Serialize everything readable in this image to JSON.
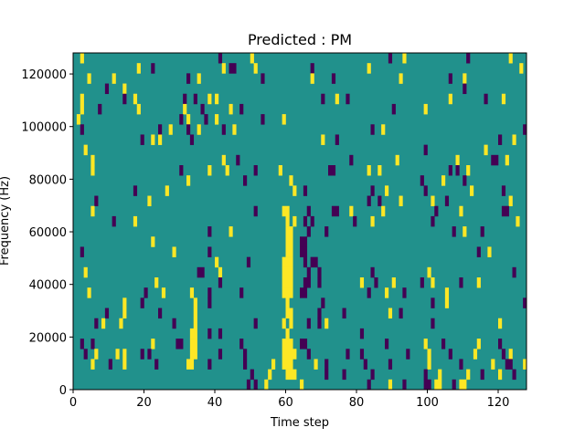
{
  "chart_data": {
    "type": "heatmap",
    "title": "Predicted : PM",
    "xlabel": "Time step",
    "ylabel": "Frequency (Hz)",
    "xlim": [
      0,
      128
    ],
    "ylim": [
      0,
      128000
    ],
    "xticks": [
      0,
      20,
      40,
      60,
      80,
      100,
      120
    ],
    "xtick_labels": [
      "0",
      "20",
      "40",
      "60",
      "80",
      "100",
      "120"
    ],
    "yticks": [
      0,
      20000,
      40000,
      60000,
      80000,
      100000,
      120000
    ],
    "ytick_labels": [
      "0",
      "20000",
      "40000",
      "60000",
      "80000",
      "100000",
      "120000"
    ],
    "n_cols": 128,
    "n_rows": 33,
    "row_order": "top-to-bottom (highest frequency first)",
    "background_value": 0.5,
    "colormap": {
      "0": "#440154",
      "0.5": "#21918c",
      "1": "#fde725"
    },
    "cells_format": "per row: [start_col, run_length, value]",
    "rows": [
      [
        [
          2,
          1,
          1
        ],
        [
          41,
          1,
          0
        ],
        [
          50,
          1,
          1
        ],
        [
          89,
          1,
          0
        ],
        [
          93,
          1,
          1
        ],
        [
          111,
          1,
          0
        ],
        [
          123,
          1,
          1
        ]
      ],
      [
        [
          18,
          1,
          1
        ],
        [
          22,
          1,
          0
        ],
        [
          42,
          1,
          1
        ],
        [
          44,
          2,
          0
        ],
        [
          51,
          1,
          1
        ],
        [
          67,
          1,
          0
        ],
        [
          83,
          1,
          1
        ],
        [
          126,
          1,
          1
        ]
      ],
      [
        [
          4,
          1,
          1
        ],
        [
          11,
          1,
          1
        ],
        [
          32,
          1,
          0
        ],
        [
          35,
          1,
          1
        ],
        [
          53,
          1,
          0
        ],
        [
          67,
          1,
          1
        ],
        [
          73,
          1,
          0
        ],
        [
          92,
          1,
          1
        ],
        [
          106,
          1,
          0
        ],
        [
          110,
          1,
          1
        ]
      ],
      [
        [
          9,
          1,
          0
        ],
        [
          14,
          1,
          1
        ],
        [
          110,
          1,
          0
        ]
      ],
      [
        [
          2,
          1,
          1
        ],
        [
          14,
          1,
          0
        ],
        [
          17,
          1,
          1
        ],
        [
          31,
          1,
          0
        ],
        [
          34,
          1,
          0
        ],
        [
          38,
          1,
          1
        ],
        [
          40,
          1,
          1
        ],
        [
          70,
          1,
          0
        ],
        [
          74,
          1,
          1
        ],
        [
          77,
          1,
          0
        ],
        [
          106,
          1,
          1
        ],
        [
          116,
          1,
          0
        ],
        [
          121,
          1,
          1
        ]
      ],
      [
        [
          2,
          1,
          1
        ],
        [
          7,
          1,
          0
        ],
        [
          18,
          1,
          1
        ],
        [
          31,
          1,
          1
        ],
        [
          36,
          1,
          0
        ],
        [
          44,
          1,
          1
        ],
        [
          47,
          1,
          0
        ],
        [
          90,
          1,
          0
        ],
        [
          99,
          1,
          1
        ]
      ],
      [
        [
          1,
          1,
          1
        ],
        [
          30,
          1,
          0
        ],
        [
          32,
          1,
          1
        ],
        [
          37,
          1,
          0
        ],
        [
          40,
          1,
          1
        ],
        [
          53,
          1,
          0
        ],
        [
          59,
          1,
          1
        ]
      ],
      [
        [
          2,
          1,
          0
        ],
        [
          24,
          1,
          0
        ],
        [
          27,
          1,
          1
        ],
        [
          32,
          1,
          0
        ],
        [
          35,
          1,
          1
        ],
        [
          42,
          1,
          0
        ],
        [
          45,
          1,
          1
        ],
        [
          84,
          1,
          0
        ],
        [
          87,
          1,
          1
        ],
        [
          127,
          1,
          0
        ]
      ],
      [
        [
          19,
          1,
          0
        ],
        [
          22,
          1,
          1
        ],
        [
          24,
          1,
          1
        ],
        [
          33,
          1,
          0
        ],
        [
          70,
          1,
          1
        ],
        [
          74,
          1,
          0
        ],
        [
          120,
          1,
          0
        ],
        [
          124,
          1,
          1
        ]
      ],
      [
        [
          3,
          1,
          1
        ],
        [
          99,
          1,
          0
        ],
        [
          116,
          1,
          1
        ]
      ],
      [
        [
          5,
          1,
          1
        ],
        [
          42,
          1,
          1
        ],
        [
          46,
          1,
          0
        ],
        [
          78,
          1,
          0
        ],
        [
          91,
          1,
          1
        ],
        [
          108,
          1,
          1
        ],
        [
          118,
          2,
          0
        ],
        [
          122,
          1,
          1
        ]
      ],
      [
        [
          5,
          1,
          1
        ],
        [
          30,
          1,
          0
        ],
        [
          38,
          1,
          1
        ],
        [
          43,
          1,
          1
        ],
        [
          51,
          1,
          0
        ],
        [
          58,
          1,
          1
        ],
        [
          72,
          2,
          0
        ],
        [
          83,
          1,
          1
        ],
        [
          86,
          1,
          1
        ],
        [
          106,
          1,
          0
        ],
        [
          108,
          1,
          0
        ],
        [
          111,
          1,
          1
        ]
      ],
      [
        [
          32,
          1,
          1
        ],
        [
          48,
          1,
          0
        ],
        [
          61,
          1,
          1
        ],
        [
          98,
          1,
          0
        ],
        [
          104,
          1,
          1
        ],
        [
          110,
          1,
          0
        ]
      ],
      [
        [
          17,
          1,
          0
        ],
        [
          26,
          1,
          1
        ],
        [
          62,
          1,
          1
        ],
        [
          65,
          1,
          0
        ],
        [
          84,
          1,
          0
        ],
        [
          88,
          1,
          1
        ],
        [
          99,
          1,
          0
        ],
        [
          112,
          1,
          1
        ],
        [
          121,
          1,
          0
        ]
      ],
      [
        [
          6,
          1,
          0
        ],
        [
          21,
          1,
          1
        ],
        [
          83,
          1,
          0
        ],
        [
          86,
          1,
          0
        ],
        [
          92,
          1,
          1
        ],
        [
          101,
          1,
          1
        ],
        [
          105,
          1,
          0
        ],
        [
          123,
          1,
          1
        ]
      ],
      [
        [
          5,
          1,
          1
        ],
        [
          51,
          1,
          0
        ],
        [
          59,
          2,
          1
        ],
        [
          66,
          1,
          0
        ],
        [
          73,
          2,
          0
        ],
        [
          78,
          1,
          1
        ],
        [
          87,
          1,
          1
        ],
        [
          102,
          1,
          0
        ],
        [
          109,
          1,
          1
        ],
        [
          121,
          2,
          0
        ]
      ],
      [
        [
          11,
          1,
          0
        ],
        [
          17,
          1,
          1
        ],
        [
          60,
          1,
          1
        ],
        [
          62,
          1,
          1
        ],
        [
          65,
          1,
          0
        ],
        [
          67,
          1,
          0
        ],
        [
          79,
          1,
          0
        ],
        [
          84,
          1,
          1
        ],
        [
          101,
          1,
          0
        ],
        [
          125,
          1,
          1
        ]
      ],
      [
        [
          38,
          1,
          0
        ],
        [
          44,
          1,
          1
        ],
        [
          60,
          2,
          1
        ],
        [
          66,
          1,
          0
        ],
        [
          71,
          1,
          0
        ],
        [
          107,
          1,
          0
        ],
        [
          110,
          1,
          1
        ],
        [
          115,
          1,
          0
        ]
      ],
      [
        [
          22,
          1,
          1
        ],
        [
          60,
          2,
          1
        ],
        [
          64,
          2,
          0
        ]
      ],
      [
        [
          2,
          1,
          0
        ],
        [
          28,
          1,
          1
        ],
        [
          38,
          1,
          0
        ],
        [
          60,
          2,
          1
        ],
        [
          64,
          2,
          0
        ],
        [
          114,
          1,
          0
        ],
        [
          117,
          1,
          1
        ]
      ],
      [
        [
          40,
          1,
          1
        ],
        [
          49,
          1,
          0
        ],
        [
          59,
          3,
          1
        ],
        [
          65,
          1,
          0
        ],
        [
          67,
          2,
          0
        ]
      ],
      [
        [
          3,
          1,
          1
        ],
        [
          35,
          2,
          0
        ],
        [
          41,
          1,
          1
        ],
        [
          59,
          3,
          1
        ],
        [
          66,
          1,
          0
        ],
        [
          69,
          1,
          0
        ],
        [
          84,
          1,
          0
        ],
        [
          100,
          1,
          1
        ],
        [
          124,
          1,
          0
        ]
      ],
      [
        [
          23,
          1,
          1
        ],
        [
          41,
          1,
          0
        ],
        [
          59,
          3,
          1
        ],
        [
          65,
          2,
          0
        ],
        [
          69,
          1,
          0
        ],
        [
          81,
          1,
          1
        ],
        [
          85,
          1,
          0
        ],
        [
          90,
          1,
          1
        ],
        [
          98,
          1,
          0
        ],
        [
          101,
          1,
          1
        ],
        [
          109,
          1,
          0
        ],
        [
          114,
          1,
          1
        ]
      ],
      [
        [
          4,
          1,
          1
        ],
        [
          20,
          1,
          0
        ],
        [
          25,
          1,
          1
        ],
        [
          33,
          1,
          1
        ],
        [
          38,
          1,
          0
        ],
        [
          47,
          1,
          0
        ],
        [
          59,
          3,
          1
        ],
        [
          64,
          2,
          0
        ],
        [
          83,
          1,
          0
        ],
        [
          88,
          1,
          1
        ],
        [
          93,
          1,
          0
        ],
        [
          105,
          1,
          1
        ]
      ],
      [
        [
          14,
          1,
          1
        ],
        [
          19,
          1,
          0
        ],
        [
          34,
          1,
          1
        ],
        [
          38,
          1,
          0
        ],
        [
          60,
          1,
          1
        ],
        [
          70,
          1,
          0
        ],
        [
          101,
          1,
          0
        ],
        [
          105,
          1,
          1
        ],
        [
          127,
          1,
          0
        ]
      ],
      [
        [
          9,
          1,
          0
        ],
        [
          14,
          1,
          1
        ],
        [
          24,
          1,
          0
        ],
        [
          34,
          1,
          1
        ],
        [
          60,
          2,
          1
        ],
        [
          69,
          1,
          0
        ],
        [
          76,
          1,
          0
        ],
        [
          89,
          1,
          1
        ],
        [
          92,
          1,
          0
        ]
      ],
      [
        [
          6,
          1,
          0
        ],
        [
          8,
          1,
          1
        ],
        [
          13,
          1,
          1
        ],
        [
          28,
          1,
          0
        ],
        [
          34,
          1,
          1
        ],
        [
          51,
          1,
          0
        ],
        [
          59,
          1,
          1
        ],
        [
          61,
          1,
          1
        ],
        [
          66,
          1,
          0
        ],
        [
          69,
          1,
          0
        ],
        [
          71,
          1,
          1
        ],
        [
          101,
          1,
          0
        ],
        [
          120,
          1,
          1
        ]
      ],
      [
        [
          33,
          2,
          1
        ],
        [
          38,
          1,
          0
        ],
        [
          41,
          1,
          0
        ],
        [
          60,
          1,
          1
        ],
        [
          81,
          1,
          0
        ]
      ],
      [
        [
          2,
          1,
          0
        ],
        [
          5,
          1,
          0
        ],
        [
          22,
          1,
          1
        ],
        [
          29,
          2,
          0
        ],
        [
          33,
          2,
          1
        ],
        [
          47,
          1,
          0
        ],
        [
          59,
          3,
          1
        ],
        [
          64,
          2,
          0
        ],
        [
          88,
          1,
          0
        ],
        [
          99,
          1,
          1
        ],
        [
          104,
          1,
          0
        ],
        [
          114,
          1,
          1
        ],
        [
          120,
          1,
          0
        ]
      ],
      [
        [
          3,
          1,
          0
        ],
        [
          6,
          1,
          1
        ],
        [
          12,
          1,
          1
        ],
        [
          14,
          1,
          1
        ],
        [
          19,
          1,
          0
        ],
        [
          21,
          1,
          0
        ],
        [
          33,
          2,
          1
        ],
        [
          41,
          1,
          0
        ],
        [
          48,
          1,
          0
        ],
        [
          59,
          4,
          1
        ],
        [
          66,
          1,
          0
        ],
        [
          77,
          1,
          0
        ],
        [
          81,
          1,
          0
        ],
        [
          94,
          1,
          0
        ],
        [
          100,
          1,
          1
        ],
        [
          106,
          1,
          0
        ],
        [
          113,
          1,
          1
        ],
        [
          121,
          1,
          0
        ],
        [
          123,
          1,
          1
        ]
      ],
      [
        [
          5,
          1,
          1
        ],
        [
          10,
          1,
          0
        ],
        [
          14,
          1,
          1
        ],
        [
          23,
          1,
          0
        ],
        [
          32,
          2,
          1
        ],
        [
          38,
          1,
          0
        ],
        [
          48,
          1,
          0
        ],
        [
          56,
          1,
          1
        ],
        [
          59,
          3,
          1
        ],
        [
          68,
          1,
          1
        ],
        [
          71,
          1,
          0
        ],
        [
          82,
          1,
          0
        ],
        [
          89,
          1,
          0
        ],
        [
          100,
          1,
          1
        ],
        [
          109,
          1,
          0
        ],
        [
          118,
          1,
          1
        ],
        [
          122,
          2,
          0
        ],
        [
          127,
          1,
          1
        ]
      ],
      [
        [
          50,
          1,
          0
        ],
        [
          55,
          1,
          1
        ],
        [
          60,
          3,
          1
        ],
        [
          71,
          1,
          0
        ],
        [
          76,
          1,
          0
        ],
        [
          84,
          1,
          0
        ],
        [
          99,
          1,
          0
        ],
        [
          103,
          1,
          1
        ],
        [
          111,
          1,
          1
        ],
        [
          115,
          1,
          0
        ],
        [
          120,
          1,
          1
        ],
        [
          124,
          1,
          0
        ]
      ],
      [
        [
          49,
          1,
          0
        ],
        [
          51,
          1,
          0
        ],
        [
          54,
          1,
          1
        ],
        [
          64,
          1,
          1
        ],
        [
          83,
          1,
          0
        ],
        [
          89,
          1,
          1
        ],
        [
          93,
          1,
          0
        ],
        [
          99,
          2,
          0
        ],
        [
          102,
          2,
          1
        ],
        [
          107,
          1,
          0
        ],
        [
          109,
          2,
          1
        ]
      ]
    ]
  }
}
